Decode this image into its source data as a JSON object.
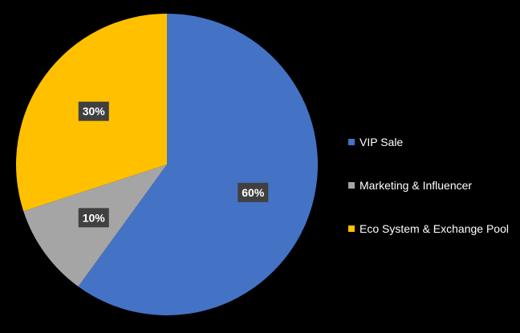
{
  "chart_data": {
    "type": "pie",
    "title": "",
    "legend_position": "right",
    "data_label_format": "percent",
    "slices": [
      {
        "label": "VIP Sale",
        "value": 60,
        "display": "60%",
        "color": "#4472C4"
      },
      {
        "label": "Marketing & Influencer",
        "value": 10,
        "display": "10%",
        "color": "#A5A5A5"
      },
      {
        "label": "Eco System & Exchange Pool",
        "value": 30,
        "display": "30%",
        "color": "#FFC000"
      }
    ]
  },
  "colors": {
    "background": "#000000",
    "label_box": "#404040",
    "text": "#FFFFFF"
  }
}
